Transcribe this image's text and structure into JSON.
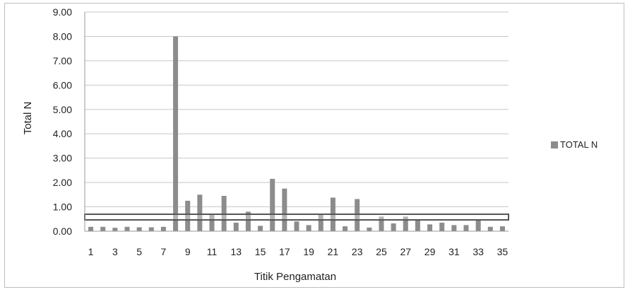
{
  "chart_data": {
    "type": "bar",
    "categories": [
      "1",
      "2",
      "3",
      "4",
      "5",
      "6",
      "7",
      "8",
      "9",
      "10",
      "11",
      "12",
      "13",
      "14",
      "15",
      "16",
      "17",
      "18",
      "19",
      "20",
      "21",
      "22",
      "23",
      "24",
      "25",
      "26",
      "27",
      "28",
      "29",
      "30",
      "31",
      "32",
      "33",
      "34",
      "35"
    ],
    "x_tick_labels": [
      "1",
      "3",
      "5",
      "7",
      "9",
      "11",
      "13",
      "15",
      "17",
      "19",
      "21",
      "23",
      "25",
      "27",
      "29",
      "31",
      "33",
      "35"
    ],
    "series": [
      {
        "name": "TOTAL N",
        "color": "#8c8c8c",
        "values": [
          0.18,
          0.18,
          0.14,
          0.18,
          0.16,
          0.16,
          0.18,
          8.0,
          1.25,
          1.5,
          0.7,
          1.45,
          0.35,
          0.8,
          0.22,
          2.15,
          1.75,
          0.4,
          0.25,
          0.7,
          1.38,
          0.2,
          1.32,
          0.15,
          0.6,
          0.32,
          0.6,
          0.45,
          0.28,
          0.35,
          0.25,
          0.25,
          0.45,
          0.18,
          0.2
        ]
      }
    ],
    "reference_line": {
      "value": 0.58,
      "color": "#555555"
    },
    "title": "",
    "xlabel": "Titik Pengamatan",
    "ylabel": "Total N",
    "ylim": [
      0,
      9
    ],
    "y_ticks": [
      "0.00",
      "1.00",
      "2.00",
      "3.00",
      "4.00",
      "5.00",
      "6.00",
      "7.00",
      "8.00",
      "9.00"
    ],
    "grid": true,
    "legend": {
      "placement": "right",
      "entries": [
        "TOTAL N"
      ]
    }
  }
}
